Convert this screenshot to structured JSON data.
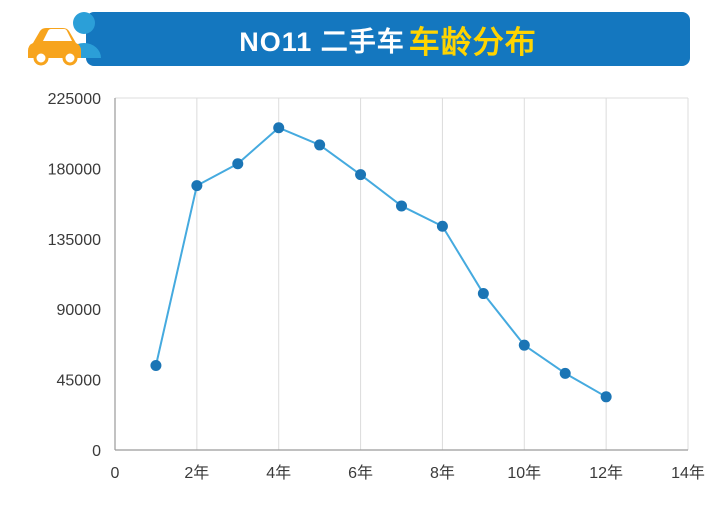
{
  "header": {
    "title_white": "NO11 二手车",
    "title_yellow": "车龄分布",
    "banner_color": "#1477bf",
    "accent_yellow": "#ffd400",
    "car_icon_color": "#f7a41d",
    "person_icon_color": "#2b9fd8"
  },
  "chart_data": {
    "type": "line",
    "title": "NO11 二手车车龄分布",
    "xlabel": "",
    "ylabel": "",
    "x": [
      1,
      2,
      3,
      4,
      5,
      6,
      7,
      8,
      9,
      10,
      11,
      12
    ],
    "values": [
      54000,
      169000,
      183000,
      206000,
      195000,
      176000,
      156000,
      143000,
      100000,
      67000,
      49000,
      34000
    ],
    "x_ticks": [
      {
        "v": 0,
        "label": "0"
      },
      {
        "v": 2,
        "label": "2年"
      },
      {
        "v": 4,
        "label": "4年"
      },
      {
        "v": 6,
        "label": "6年"
      },
      {
        "v": 8,
        "label": "8年"
      },
      {
        "v": 10,
        "label": "10年"
      },
      {
        "v": 12,
        "label": "12年"
      },
      {
        "v": 14,
        "label": "14年"
      }
    ],
    "y_ticks": [
      0,
      45000,
      90000,
      135000,
      180000,
      225000
    ],
    "xlim": [
      0,
      14
    ],
    "ylim": [
      0,
      225000
    ],
    "line_color": "#45aadf",
    "marker_color": "#1b75b5",
    "grid": "vertical",
    "legend": "none"
  }
}
